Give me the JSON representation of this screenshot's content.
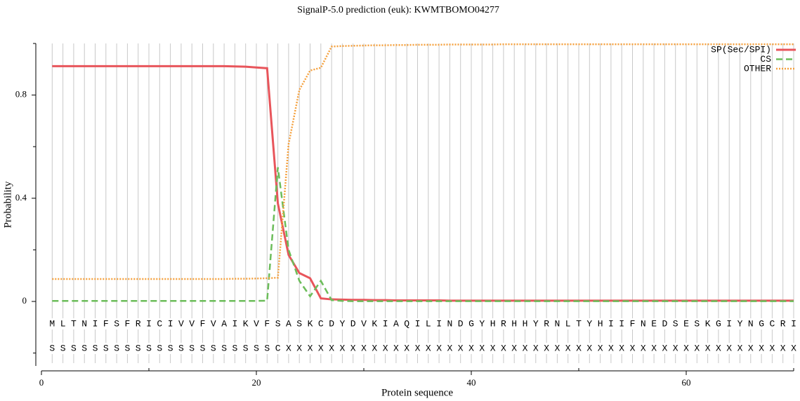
{
  "chart_data": {
    "type": "line",
    "title": "SignalP-5.0 prediction (euk):  KWMTBOMO04277",
    "xlabel": "Protein sequence",
    "ylabel": "Probability",
    "x": [
      1,
      2,
      3,
      4,
      5,
      6,
      7,
      8,
      9,
      10,
      11,
      12,
      13,
      14,
      15,
      16,
      17,
      18,
      19,
      20,
      21,
      22,
      23,
      24,
      25,
      26,
      27,
      28,
      29,
      30,
      31,
      32,
      33,
      34,
      35,
      36,
      37,
      38,
      39,
      40,
      41,
      42,
      43,
      44,
      45,
      46,
      47,
      48,
      49,
      50,
      51,
      52,
      53,
      54,
      55,
      56,
      57,
      58,
      59,
      60,
      61,
      62,
      63,
      64,
      65,
      66,
      67,
      68,
      69,
      70
    ],
    "sequence": [
      "M",
      "L",
      "T",
      "N",
      "I",
      "F",
      "S",
      "F",
      "R",
      "I",
      "C",
      "I",
      "V",
      "V",
      "F",
      "V",
      "A",
      "I",
      "K",
      "V",
      "F",
      "S",
      "A",
      "S",
      "K",
      "C",
      "D",
      "Y",
      "D",
      "V",
      "K",
      "I",
      "A",
      "Q",
      "I",
      "L",
      "I",
      "N",
      "D",
      "G",
      "Y",
      "H",
      "R",
      "H",
      "H",
      "Y",
      "R",
      "N",
      "L",
      "T",
      "Y",
      "H",
      "I",
      "I",
      "F",
      "N",
      "E",
      "D",
      "S",
      "E",
      "S",
      "K",
      "G",
      "I",
      "Y",
      "N",
      "G",
      "C",
      "R",
      "I"
    ],
    "labels": [
      "S",
      "S",
      "S",
      "S",
      "S",
      "S",
      "S",
      "S",
      "S",
      "S",
      "S",
      "S",
      "S",
      "S",
      "S",
      "S",
      "S",
      "S",
      "S",
      "S",
      "S",
      "C",
      "X",
      "X",
      "X",
      "X",
      "X",
      "X",
      "X",
      "X",
      "X",
      "X",
      "X",
      "X",
      "X",
      "X",
      "X",
      "X",
      "X",
      "X",
      "X",
      "X",
      "X",
      "X",
      "X",
      "X",
      "X",
      "X",
      "X",
      "X",
      "X",
      "X",
      "X",
      "X",
      "X",
      "X",
      "X",
      "X",
      "X",
      "X",
      "X",
      "X",
      "X",
      "X",
      "X",
      "X",
      "X",
      "X",
      "X",
      "X"
    ],
    "series": [
      {
        "name": "SP(Sec/SPI)",
        "color": "#e8555b",
        "style": "solid",
        "values": [
          0.912,
          0.912,
          0.912,
          0.912,
          0.912,
          0.912,
          0.912,
          0.912,
          0.912,
          0.912,
          0.912,
          0.912,
          0.912,
          0.912,
          0.912,
          0.912,
          0.912,
          0.911,
          0.91,
          0.907,
          0.904,
          0.38,
          0.18,
          0.11,
          0.09,
          0.012,
          0.008,
          0.007,
          0.006,
          0.006,
          0.005,
          0.005,
          0.004,
          0.004,
          0.004,
          0.004,
          0.004,
          0.003,
          0.003,
          0.003,
          0.003,
          0.003,
          0.003,
          0.003,
          0.003,
          0.003,
          0.003,
          0.003,
          0.003,
          0.003,
          0.003,
          0.003,
          0.003,
          0.003,
          0.003,
          0.003,
          0.003,
          0.003,
          0.003,
          0.003,
          0.003,
          0.003,
          0.003,
          0.003,
          0.003,
          0.003,
          0.003,
          0.003,
          0.003,
          0.003
        ]
      },
      {
        "name": "CS",
        "color": "#6cbd5a",
        "style": "dashed",
        "values": [
          0.002,
          0.002,
          0.002,
          0.002,
          0.002,
          0.002,
          0.002,
          0.002,
          0.002,
          0.002,
          0.002,
          0.002,
          0.002,
          0.002,
          0.002,
          0.002,
          0.002,
          0.002,
          0.002,
          0.002,
          0.003,
          0.52,
          0.2,
          0.08,
          0.02,
          0.08,
          0.005,
          0.002,
          0.001,
          0.001,
          0.001,
          0.001,
          0.001,
          0.001,
          0.001,
          0.001,
          0.001,
          0.001,
          0.001,
          0.001,
          0.001,
          0.001,
          0.001,
          0.001,
          0.001,
          0.001,
          0.001,
          0.001,
          0.001,
          0.001,
          0.001,
          0.001,
          0.001,
          0.001,
          0.001,
          0.001,
          0.001,
          0.001,
          0.001,
          0.001,
          0.001,
          0.001,
          0.001,
          0.001,
          0.001,
          0.001,
          0.001,
          0.001,
          0.001,
          0.001
        ]
      },
      {
        "name": "OTHER",
        "color": "#f5a03c",
        "style": "dotted",
        "values": [
          0.087,
          0.087,
          0.087,
          0.087,
          0.087,
          0.087,
          0.087,
          0.087,
          0.087,
          0.087,
          0.087,
          0.087,
          0.087,
          0.087,
          0.087,
          0.087,
          0.087,
          0.088,
          0.088,
          0.089,
          0.09,
          0.092,
          0.61,
          0.82,
          0.895,
          0.906,
          0.988,
          0.99,
          0.991,
          0.992,
          0.993,
          0.993,
          0.994,
          0.994,
          0.995,
          0.995,
          0.995,
          0.996,
          0.996,
          0.996,
          0.996,
          0.996,
          0.997,
          0.997,
          0.997,
          0.997,
          0.997,
          0.997,
          0.997,
          0.997,
          0.997,
          0.997,
          0.997,
          0.997,
          0.997,
          0.997,
          0.997,
          0.997,
          0.997,
          0.997,
          0.997,
          0.997,
          0.997,
          0.997,
          0.997,
          0.997,
          0.997,
          0.997,
          0.997,
          0.997
        ]
      }
    ],
    "xlim": [
      0,
      70
    ],
    "xticks": [
      0,
      20,
      40,
      60
    ],
    "xminor_ticks": [
      10,
      30,
      50,
      70
    ],
    "ylim": [
      -0.25,
      1.0
    ],
    "yticks": [
      0,
      0.4,
      0.8
    ],
    "yminor_ticks": [
      -0.2,
      0.2,
      0.6,
      1.0
    ],
    "legend": "upper right"
  }
}
